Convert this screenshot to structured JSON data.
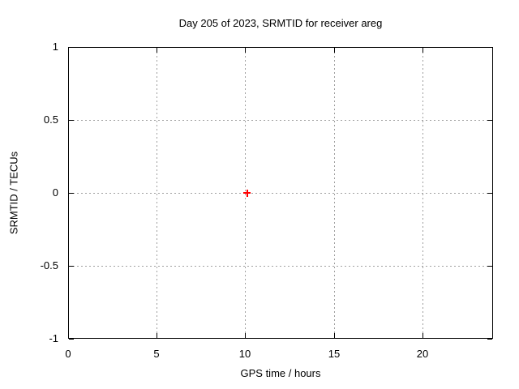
{
  "chart_data": {
    "type": "scatter",
    "title": "Day 205 of 2023, SRMTID for receiver areg",
    "xlabel": "GPS time / hours",
    "ylabel": "SRMTID / TECUs",
    "xlim": [
      0,
      24
    ],
    "ylim": [
      -1,
      1
    ],
    "xticks": [
      {
        "v": 0,
        "label": "0"
      },
      {
        "v": 5,
        "label": "5"
      },
      {
        "v": 10,
        "label": "10"
      },
      {
        "v": 15,
        "label": "15"
      },
      {
        "v": 20,
        "label": "20"
      }
    ],
    "yticks": [
      {
        "v": -1,
        "label": "-1"
      },
      {
        "v": -0.5,
        "label": "-0.5"
      },
      {
        "v": 0,
        "label": "0"
      },
      {
        "v": 0.5,
        "label": "0.5"
      },
      {
        "v": 1,
        "label": "1"
      }
    ],
    "grid": true,
    "legend": false,
    "series": [
      {
        "marker": "plus",
        "color": "#ff0000",
        "points": [
          {
            "x": 10.1,
            "y": 0
          }
        ]
      }
    ],
    "colors": {
      "background": "#ffffff",
      "border": "#000000",
      "grid": "#a0a0a0",
      "text": "#000000",
      "point": "#ff0000"
    }
  }
}
